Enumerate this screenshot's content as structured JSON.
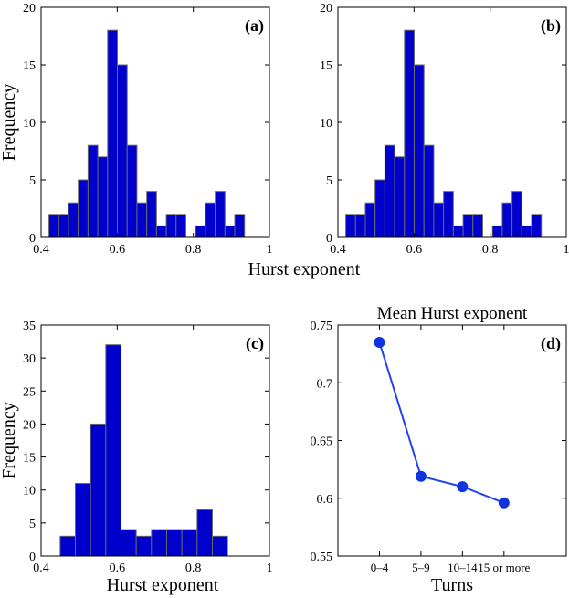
{
  "figure": {
    "shared_xlabel": "Hurst exponent",
    "shared_ylabel": "Frequency"
  },
  "chart_data": [
    {
      "id": "a",
      "type": "bar",
      "panel_label": "(a)",
      "legend_position": "top-right",
      "title": "",
      "xlabel": "",
      "ylabel": "Frequency",
      "xlim": [
        0.4,
        1.0
      ],
      "ylim": [
        0,
        20
      ],
      "xticks": [
        0.4,
        0.6,
        0.8,
        1.0
      ],
      "xtick_labels": [
        "0.4",
        "0.6",
        "0.8",
        "1"
      ],
      "yticks": [
        0,
        5,
        10,
        15,
        20
      ],
      "ytick_labels": [
        "0",
        "5",
        "10",
        "15",
        "20"
      ],
      "bin_width": 0.0257,
      "bin_centers": [
        0.4334,
        0.4591,
        0.4848,
        0.5105,
        0.5362,
        0.5619,
        0.5876,
        0.6133,
        0.639,
        0.6647,
        0.6904,
        0.7161,
        0.7418,
        0.7675,
        0.7932,
        0.8189,
        0.8446,
        0.8703,
        0.896,
        0.9217
      ],
      "values": [
        2,
        2,
        3,
        5,
        8,
        7,
        18,
        15,
        8,
        3,
        4,
        1,
        2,
        2,
        0,
        1,
        3,
        4,
        1,
        2
      ]
    },
    {
      "id": "b",
      "type": "bar",
      "panel_label": "(b)",
      "legend_position": "top-right",
      "title": "",
      "xlabel": "",
      "ylabel": "",
      "xlim": [
        0.4,
        1.0
      ],
      "ylim": [
        0,
        20
      ],
      "xticks": [
        0.4,
        0.6,
        0.8,
        1.0
      ],
      "xtick_labels": [
        "0.4",
        "0.6",
        "0.8",
        "1"
      ],
      "yticks": [
        0,
        5,
        10,
        15,
        20
      ],
      "ytick_labels": [
        "0",
        "5",
        "10",
        "15",
        "20"
      ],
      "bin_width": 0.0257,
      "bin_centers": [
        0.4334,
        0.4591,
        0.4848,
        0.5105,
        0.5362,
        0.5619,
        0.5876,
        0.6133,
        0.639,
        0.6647,
        0.6904,
        0.7161,
        0.7418,
        0.7675,
        0.7932,
        0.8189,
        0.8446,
        0.8703,
        0.896,
        0.9217
      ],
      "values": [
        2,
        2,
        3,
        5,
        8,
        7,
        18,
        15,
        8,
        3,
        4,
        1,
        2,
        2,
        0,
        1,
        3,
        4,
        1,
        2
      ]
    },
    {
      "id": "c",
      "type": "bar",
      "panel_label": "(c)",
      "legend_position": "top-right",
      "title": "",
      "xlabel": "Hurst exponent",
      "ylabel": "Frequency",
      "xlim": [
        0.4,
        1.0
      ],
      "ylim": [
        0,
        35
      ],
      "xticks": [
        0.4,
        0.6,
        0.8,
        1.0
      ],
      "xtick_labels": [
        "0.4",
        "0.6",
        "0.8",
        "1"
      ],
      "yticks": [
        0,
        5,
        10,
        15,
        20,
        25,
        30,
        35
      ],
      "ytick_labels": [
        "0",
        "5",
        "10",
        "15",
        "20",
        "25",
        "30",
        "35"
      ],
      "bin_width": 0.04,
      "bin_centers": [
        0.47,
        0.51,
        0.55,
        0.59,
        0.63,
        0.67,
        0.71,
        0.75,
        0.79,
        0.83,
        0.87,
        0.91
      ],
      "values": [
        3,
        11,
        20,
        32,
        4,
        3,
        4,
        4,
        4,
        7,
        3,
        0
      ]
    },
    {
      "id": "d",
      "type": "line",
      "panel_label": "(d)",
      "legend_position": "top-right",
      "title": "Mean Hurst exponent",
      "xlabel": "Turns",
      "ylabel": "",
      "categories": [
        "0–4",
        "5–9",
        "10–14",
        "15 or more"
      ],
      "values": [
        0.735,
        0.619,
        0.61,
        0.596
      ],
      "ylim": [
        0.55,
        0.75
      ],
      "yticks": [
        0.55,
        0.6,
        0.65,
        0.7,
        0.75
      ],
      "ytick_labels": [
        "0.55",
        "0.6",
        "0.65",
        "0.7",
        "0.75"
      ]
    }
  ],
  "colors": {
    "bar_fill": "#0000cc",
    "bar_edge": "#6a6a6a",
    "line": "#2244ee",
    "marker": "#1133dd",
    "axis": "#000000"
  }
}
